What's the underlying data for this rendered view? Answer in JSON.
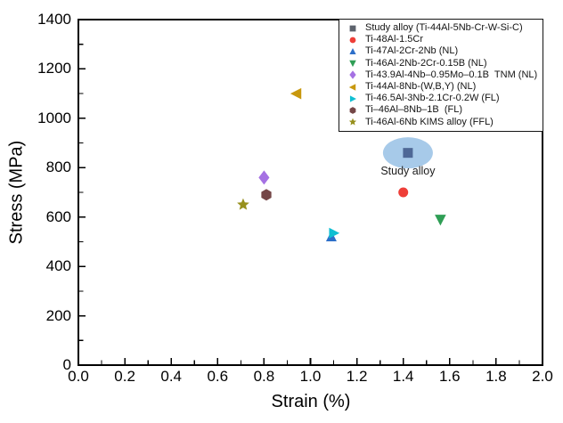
{
  "chart_data": {
    "type": "scatter",
    "title": "",
    "xlabel": "Strain (%)",
    "ylabel": "Stress (MPa)",
    "xlim": [
      0.0,
      2.0
    ],
    "ylim": [
      0,
      1400
    ],
    "xticks": [
      "0.0",
      "0.2",
      "0.4",
      "0.6",
      "0.8",
      "1.0",
      "1.2",
      "1.4",
      "1.6",
      "1.8",
      "2.0"
    ],
    "yticks": [
      "0",
      "200",
      "400",
      "600",
      "800",
      "1000",
      "1200",
      "1400"
    ],
    "x_minor_step": 0.1,
    "y_minor_step": 100,
    "grid": false,
    "legend_position": "top-right",
    "series": [
      {
        "name": "Study alloy (Ti-44Al-5Nb-Cr-W-Si-C)",
        "marker": "square",
        "color": "#4e6896",
        "legend_color": "#5d636d",
        "x": 1.42,
        "y": 860
      },
      {
        "name": "Ti-48Al-1.5Cr",
        "marker": "circle",
        "color": "#ee3e38",
        "x": 1.4,
        "y": 700
      },
      {
        "name": "Ti-47Al-2Cr-2Nb (NL)",
        "marker": "triangle-up",
        "color": "#2d6fc9",
        "x": 1.09,
        "y": 520
      },
      {
        "name": "Ti-46Al-2Nb-2Cr-0.15B (NL)",
        "marker": "triangle-down",
        "color": "#2f9e55",
        "x": 1.56,
        "y": 590
      },
      {
        "name": "Ti-43.9Al-4Nb–0.95Mo–0.1B  TNM (NL)",
        "marker": "diamond",
        "color": "#a571e3",
        "x": 0.8,
        "y": 760
      },
      {
        "name": "Ti-44Al-8Nb-(W,B,Y) (NL)",
        "marker": "triangle-left",
        "color": "#c8980e",
        "x": 0.94,
        "y": 1100
      },
      {
        "name": "Ti-46.5Al-3Nb-2.1Cr-0.2W (FL)",
        "marker": "triangle-right",
        "color": "#10bfd2",
        "x": 1.1,
        "y": 535
      },
      {
        "name": "Ti–46Al–8Nb–1B  (FL)",
        "marker": "hexagon",
        "color": "#744647",
        "x": 0.81,
        "y": 690
      },
      {
        "name": "Ti-46Al-6Nb KIMS alloy (FFL)",
        "marker": "star",
        "color": "#97901d",
        "x": 0.71,
        "y": 650
      }
    ],
    "annotation": {
      "text": "Study alloy",
      "attached_series": "Study alloy (Ti-44Al-5Nb-Cr-W-Si-C)",
      "x": 1.42,
      "y": 860,
      "ellipse_color": "#a7cae9"
    },
    "axis_color": "#000000",
    "background_color": "#ffffff"
  }
}
